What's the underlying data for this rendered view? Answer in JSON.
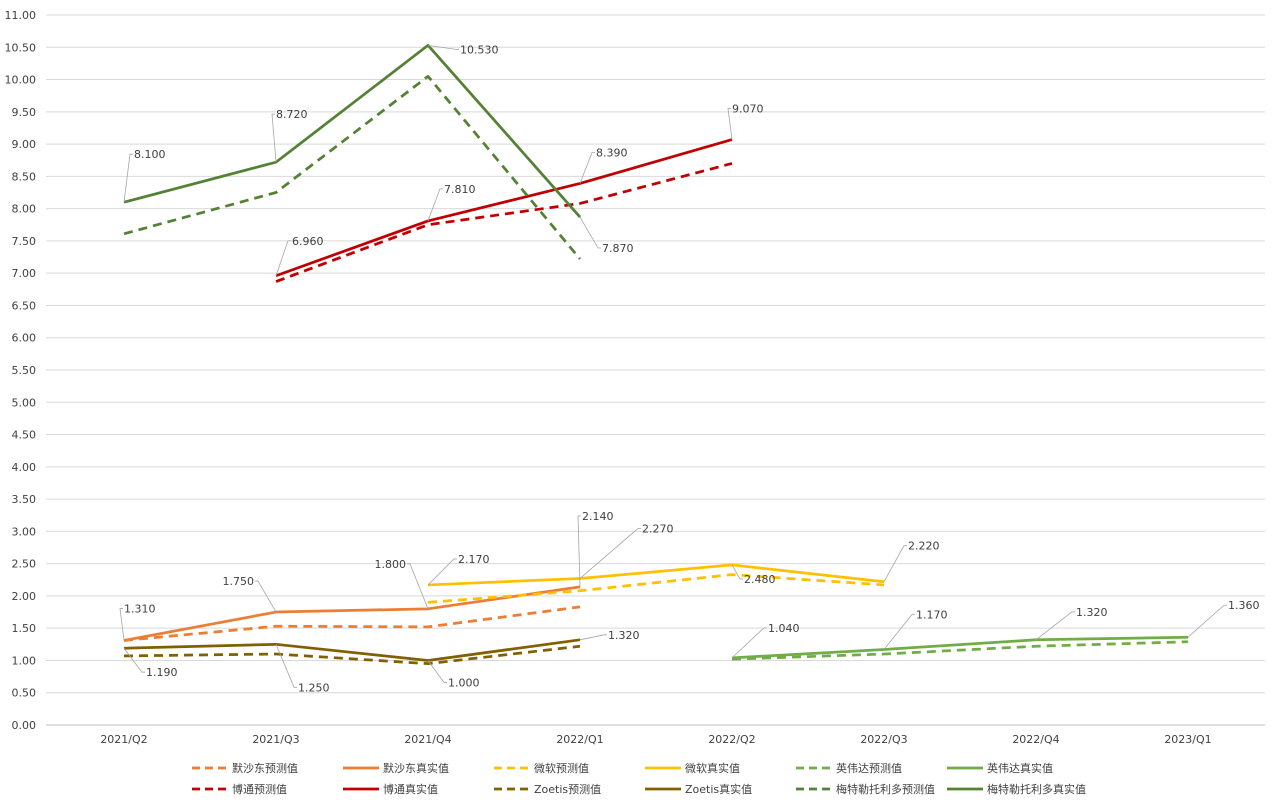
{
  "chart_data": {
    "type": "line",
    "title": "",
    "xlabel": "",
    "ylabel": "",
    "categories": [
      "2021/Q2",
      "2021/Q3",
      "2021/Q4",
      "2022/Q1",
      "2022/Q2",
      "2022/Q3",
      "2022/Q4",
      "2023/Q1"
    ],
    "ylim": [
      0,
      11
    ],
    "ytick_step": 0.5,
    "y_tick_labels": [
      "0.00",
      "0.50",
      "1.00",
      "1.50",
      "2.00",
      "2.50",
      "3.00",
      "3.50",
      "4.00",
      "4.50",
      "5.00",
      "5.50",
      "6.00",
      "6.50",
      "7.00",
      "7.50",
      "8.00",
      "8.50",
      "9.00",
      "9.50",
      "10.00",
      "10.50",
      "11.00"
    ],
    "grid": true,
    "legend_position": "bottom",
    "series": [
      {
        "name": "默沙东预测值",
        "color": "#ED7D31",
        "dashed": true,
        "values": [
          1.31,
          1.53,
          1.52,
          1.83,
          null,
          null,
          null,
          null
        ]
      },
      {
        "name": "默沙东真实值",
        "color": "#ED7D31",
        "dashed": false,
        "values": [
          1.31,
          1.75,
          1.8,
          2.14,
          null,
          null,
          null,
          null
        ]
      },
      {
        "name": "微软预测值",
        "color": "#FFC000",
        "dashed": true,
        "values": [
          null,
          null,
          1.9,
          2.08,
          2.33,
          2.17,
          null,
          null
        ]
      },
      {
        "name": "微软真实值",
        "color": "#FFC000",
        "dashed": false,
        "values": [
          null,
          null,
          2.17,
          2.27,
          2.48,
          2.22,
          null,
          null
        ]
      },
      {
        "name": "英伟达预测值",
        "color": "#70AD47",
        "dashed": true,
        "values": [
          null,
          null,
          null,
          null,
          1.02,
          1.1,
          1.22,
          1.29
        ]
      },
      {
        "name": "英伟达真实值",
        "color": "#70AD47",
        "dashed": false,
        "values": [
          null,
          null,
          null,
          null,
          1.04,
          1.17,
          1.32,
          1.36
        ]
      },
      {
        "name": "博通预测值",
        "color": "#C00000",
        "dashed": true,
        "values": [
          null,
          6.87,
          7.75,
          8.08,
          8.7,
          null,
          null,
          null
        ]
      },
      {
        "name": "博通真实值",
        "color": "#C00000",
        "dashed": false,
        "values": [
          null,
          6.96,
          7.81,
          8.39,
          9.07,
          null,
          null,
          null
        ]
      },
      {
        "name": "Zoetis预测值",
        "color": "#806000",
        "dashed": true,
        "values": [
          1.07,
          1.1,
          0.95,
          1.22,
          null,
          null,
          null,
          null
        ]
      },
      {
        "name": "Zoetis真实值",
        "color": "#806000",
        "dashed": false,
        "values": [
          1.19,
          1.25,
          1.0,
          1.32,
          null,
          null,
          null,
          null
        ]
      },
      {
        "name": "梅特勒托利多预测值",
        "color": "#548235",
        "dashed": true,
        "values": [
          7.61,
          8.25,
          10.05,
          7.22,
          null,
          null,
          null,
          null
        ]
      },
      {
        "name": "梅特勒托利多真实值",
        "color": "#548235",
        "dashed": false,
        "values": [
          8.1,
          8.72,
          10.53,
          7.87,
          null,
          null,
          null,
          null
        ]
      }
    ],
    "data_labels": [
      {
        "text": "8.100",
        "series": "梅特勒托利多真实值",
        "category": "2021/Q2",
        "value": 8.1
      },
      {
        "text": "8.720",
        "series": "梅特勒托利多真实值",
        "category": "2021/Q3",
        "value": 8.72
      },
      {
        "text": "10.530",
        "series": "梅特勒托利多真实值",
        "category": "2021/Q4",
        "value": 10.53
      },
      {
        "text": "7.870",
        "series": "梅特勒托利多真实值",
        "category": "2022/Q1",
        "value": 7.87
      },
      {
        "text": "6.960",
        "series": "博通真实值",
        "category": "2021/Q3",
        "value": 6.96
      },
      {
        "text": "7.810",
        "series": "博通真实值",
        "category": "2021/Q4",
        "value": 7.81
      },
      {
        "text": "8.390",
        "series": "博通真实值",
        "category": "2022/Q1",
        "value": 8.39
      },
      {
        "text": "9.070",
        "series": "博通真实值",
        "category": "2022/Q2",
        "value": 9.07
      },
      {
        "text": "1.310",
        "series": "默沙东真实值",
        "category": "2021/Q2",
        "value": 1.31
      },
      {
        "text": "1.750",
        "series": "默沙东真实值",
        "category": "2021/Q3",
        "value": 1.75
      },
      {
        "text": "1.800",
        "series": "默沙东真实值",
        "category": "2021/Q4",
        "value": 1.8
      },
      {
        "text": "2.140",
        "series": "默沙东真实值",
        "category": "2022/Q1",
        "value": 2.14
      },
      {
        "text": "2.170",
        "series": "微软真实值",
        "category": "2021/Q4",
        "value": 2.17
      },
      {
        "text": "2.270",
        "series": "微软真实值",
        "category": "2022/Q1",
        "value": 2.27
      },
      {
        "text": "2.480",
        "series": "微软真实值",
        "category": "2022/Q2",
        "value": 2.48
      },
      {
        "text": "2.220",
        "series": "微软真实值",
        "category": "2022/Q3",
        "value": 2.22
      },
      {
        "text": "1.190",
        "series": "Zoetis真实值",
        "category": "2021/Q2",
        "value": 1.19
      },
      {
        "text": "1.250",
        "series": "Zoetis真实值",
        "category": "2021/Q3",
        "value": 1.25
      },
      {
        "text": "1.000",
        "series": "Zoetis真实值",
        "category": "2021/Q4",
        "value": 1.0
      },
      {
        "text": "1.320",
        "series": "Zoetis真实值",
        "category": "2022/Q1",
        "value": 1.32
      },
      {
        "text": "1.040",
        "series": "英伟达真实值",
        "category": "2022/Q2",
        "value": 1.04
      },
      {
        "text": "1.170",
        "series": "英伟达真实值",
        "category": "2022/Q3",
        "value": 1.17
      },
      {
        "text": "1.320",
        "series": "英伟达真实值",
        "category": "2022/Q4",
        "value": 1.32
      },
      {
        "text": "1.360",
        "series": "英伟达真实值",
        "category": "2023/Q1",
        "value": 1.36
      }
    ]
  }
}
